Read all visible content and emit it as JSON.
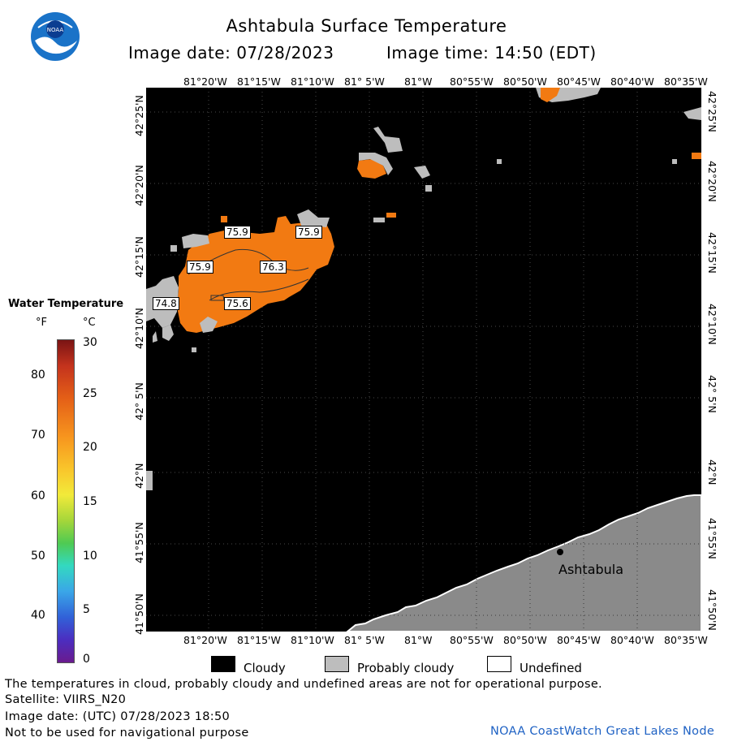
{
  "header": {
    "title": "Ashtabula Surface Temperature",
    "image_date": "Image date: 07/28/2023",
    "image_time": "Image time: 14:50 (EDT)",
    "logo_text": "NOAA"
  },
  "map": {
    "lon_labels": [
      "81°20'W",
      "81°15'W",
      "81°10'W",
      "81° 5'W",
      "81°W",
      "80°55'W",
      "80°50'W",
      "80°45'W",
      "80°40'W",
      "80°35'W"
    ],
    "lat_labels": [
      "42°25'N",
      "42°20'N",
      "42°15'N",
      "42°10'N",
      "42° 5'N",
      "42°N",
      "41°55'N",
      "41°50'N"
    ],
    "place_label": "Ashtabula",
    "temperature_labels": [
      "75.9",
      "75.9",
      "75.9",
      "76.3",
      "74.8",
      "75.6"
    ],
    "colors": {
      "water_background": "#000000",
      "warm_water": "#f27a12",
      "cloud": "#bdbdbd",
      "land": "#8a8a8a"
    }
  },
  "legend": {
    "title": "Water Temperature",
    "unit_f": "°F",
    "unit_c": "°C",
    "f_ticks": [
      "80",
      "70",
      "60",
      "50",
      "40"
    ],
    "c_ticks": [
      "30",
      "25",
      "20",
      "15",
      "10",
      "5",
      "0"
    ]
  },
  "key": {
    "cloudy": "Cloudy",
    "probably_cloudy": "Probably cloudy",
    "undefined": "Undefined"
  },
  "footer": {
    "note": "The temperatures in cloud, probably cloudy and undefined areas are not for operational purpose.",
    "satellite": "Satellite: VIIRS_N20",
    "utc_date": "Image date: (UTC) 07/28/2023   18:50",
    "nav_warning": "Not to be used for navigational purpose",
    "credit": "NOAA CoastWatch Great Lakes Node"
  }
}
